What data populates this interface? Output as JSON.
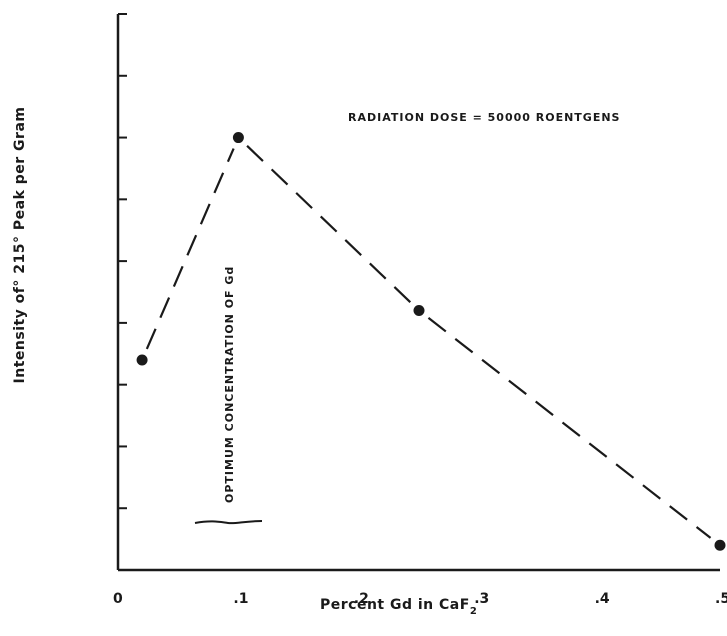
{
  "chart_data": {
    "type": "line",
    "title": "",
    "xlabel": "Percent  Gd  in  CaF",
    "xlabel_subscript": "2",
    "ylabel": "Intensity  of° 215° Peak  per  Gram",
    "xlim": [
      0,
      0.5
    ],
    "ylim": [
      0,
      9
    ],
    "x_ticks": [
      0,
      0.1,
      0.2,
      0.3,
      0.4,
      0.5
    ],
    "x_tick_labels": [
      "0",
      ".1",
      ".2",
      ".3",
      ".4",
      ".5"
    ],
    "y_ticks": [
      1,
      2,
      3,
      4,
      5,
      6,
      7,
      8,
      9
    ],
    "y_tick_labels": [],
    "grid": false,
    "line_style": "dashed",
    "series": [
      {
        "x": [
          0.02,
          0.1,
          0.25,
          0.5
        ],
        "y": [
          3.4,
          7.0,
          4.2,
          0.4
        ]
      }
    ],
    "annotations": [
      {
        "text": "RADIATION   DOSE = 50000  ROENTGENS"
      },
      {
        "text": "OPTIMUM  CONCENTRATION  OF  Gd",
        "x": 0.1
      }
    ],
    "colors": {
      "ink": "#1a1a1a",
      "background": "#ffffff"
    }
  }
}
